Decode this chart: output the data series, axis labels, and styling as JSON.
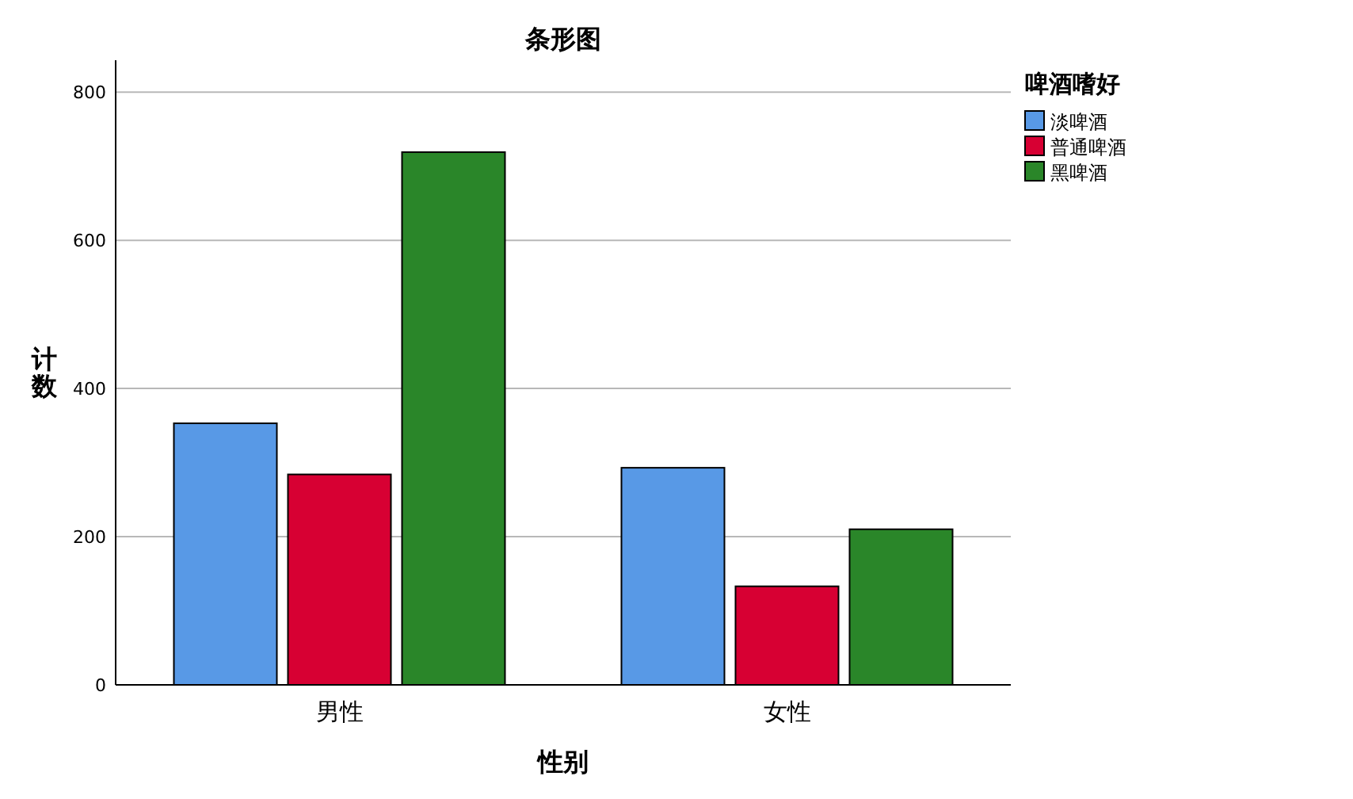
{
  "chart_data": {
    "type": "bar",
    "title": "条形图",
    "xlabel": "性别",
    "ylabel": "计数",
    "legend_title": "啤酒嗜好",
    "legend": "top right",
    "grid": "y",
    "categories": [
      "男性",
      "女性"
    ],
    "series": [
      {
        "name": "淡啤酒",
        "color": "#5899e6",
        "values": [
          353,
          293
        ]
      },
      {
        "name": "普通啤酒",
        "color": "#d70033",
        "values": [
          284,
          133
        ]
      },
      {
        "name": "黑啤酒",
        "color": "#2a8629",
        "values": [
          719,
          210
        ]
      }
    ],
    "ylim": [
      0,
      843
    ],
    "yticks": [
      0,
      200,
      400,
      600,
      800
    ]
  }
}
